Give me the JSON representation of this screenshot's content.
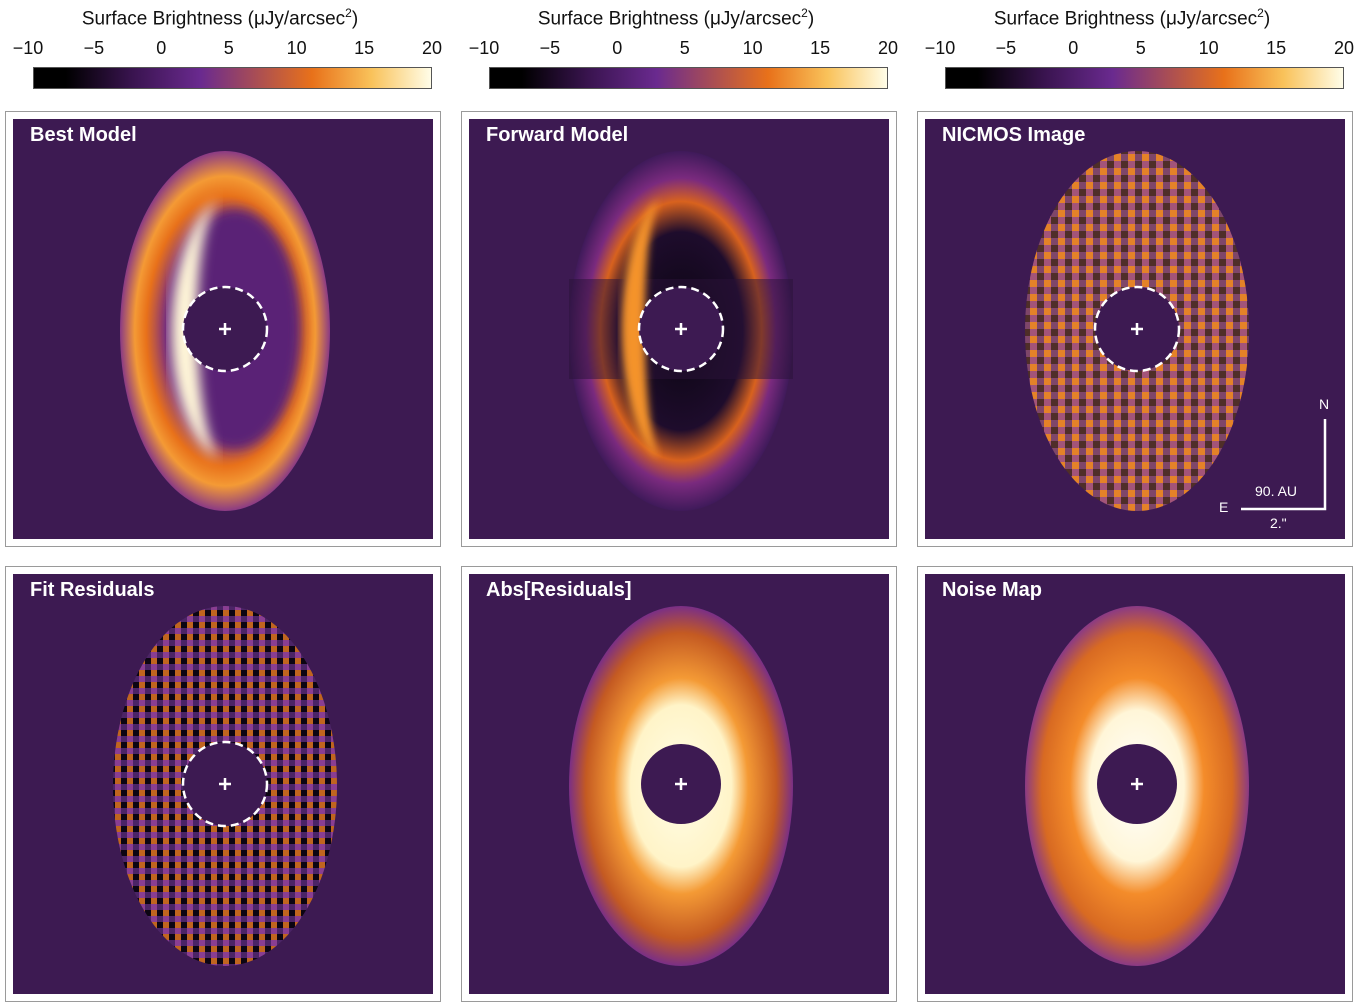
{
  "colorbar": {
    "title_prefix": "Surface Brightness (μJy/arcsec",
    "title_sup": "2",
    "title_suffix": ")",
    "ticks": [
      "−10",
      "−5",
      "0",
      "5",
      "10",
      "15",
      "20"
    ],
    "range": [
      -10,
      20
    ]
  },
  "panels": [
    {
      "id": "best-model",
      "label": "Best Model"
    },
    {
      "id": "forward-model",
      "label": "Forward Model"
    },
    {
      "id": "nicmos-image",
      "label": "NICMOS Image"
    },
    {
      "id": "fit-residuals",
      "label": "Fit Residuals"
    },
    {
      "id": "abs-residuals",
      "label": "Abs[Residuals]"
    },
    {
      "id": "noise-map",
      "label": "Noise Map"
    }
  ],
  "compass": {
    "north": "N",
    "east": "E",
    "scale_au": "90. AU",
    "scale_arcsec": "2.\""
  },
  "colors": {
    "background": "#3d1a52",
    "ring": "#e8711a",
    "bright": "#fff6d8",
    "cmap_low": "#000000",
    "cmap_mid": "#6a2a8f",
    "cmap_high": "#fffde8"
  }
}
